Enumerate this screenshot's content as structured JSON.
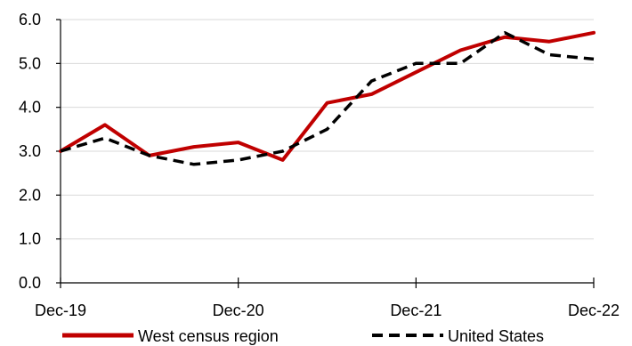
{
  "chart_data": {
    "type": "line",
    "title": "",
    "xlabel": "",
    "ylabel": "",
    "x": [
      0,
      1,
      2,
      3,
      4,
      5,
      6,
      7,
      8,
      9,
      10,
      11,
      12
    ],
    "x_tick_labels": [
      "Dec-19",
      "Dec-20",
      "Dec-21",
      "Dec-22"
    ],
    "x_tick_positions": [
      0,
      4,
      8,
      12
    ],
    "ylim": [
      0,
      6
    ],
    "y_ticks": [
      0,
      1,
      2,
      3,
      4,
      5,
      6
    ],
    "y_tick_labels": [
      "0.0",
      "1.0",
      "2.0",
      "3.0",
      "4.0",
      "5.0",
      "6.0"
    ],
    "grid": "horizontal",
    "legend": "bottom",
    "series": [
      {
        "name": "West census region",
        "style": "solid",
        "color": "#c00000",
        "values": [
          [
            0,
            3.0
          ],
          [
            1,
            3.6
          ],
          [
            2,
            2.9
          ],
          [
            3,
            3.1
          ],
          [
            4,
            3.2
          ],
          [
            5,
            2.8
          ],
          [
            6,
            4.1
          ],
          [
            7,
            4.3
          ],
          [
            8,
            4.8
          ],
          [
            9,
            5.3
          ],
          [
            10,
            5.6
          ],
          [
            11,
            5.5
          ],
          [
            12,
            5.7
          ]
        ]
      },
      {
        "name": "United States",
        "style": "dashed",
        "color": "#000000",
        "values": [
          [
            0,
            3.0
          ],
          [
            1,
            3.3
          ],
          [
            2,
            2.9
          ],
          [
            3,
            2.7
          ],
          [
            4,
            2.8
          ],
          [
            5,
            3.0
          ],
          [
            6,
            3.5
          ],
          [
            7,
            4.6
          ],
          [
            8,
            5.0
          ],
          [
            9,
            5.0
          ],
          [
            10,
            5.7
          ],
          [
            11,
            5.2
          ],
          [
            12,
            5.1
          ]
        ]
      }
    ]
  }
}
